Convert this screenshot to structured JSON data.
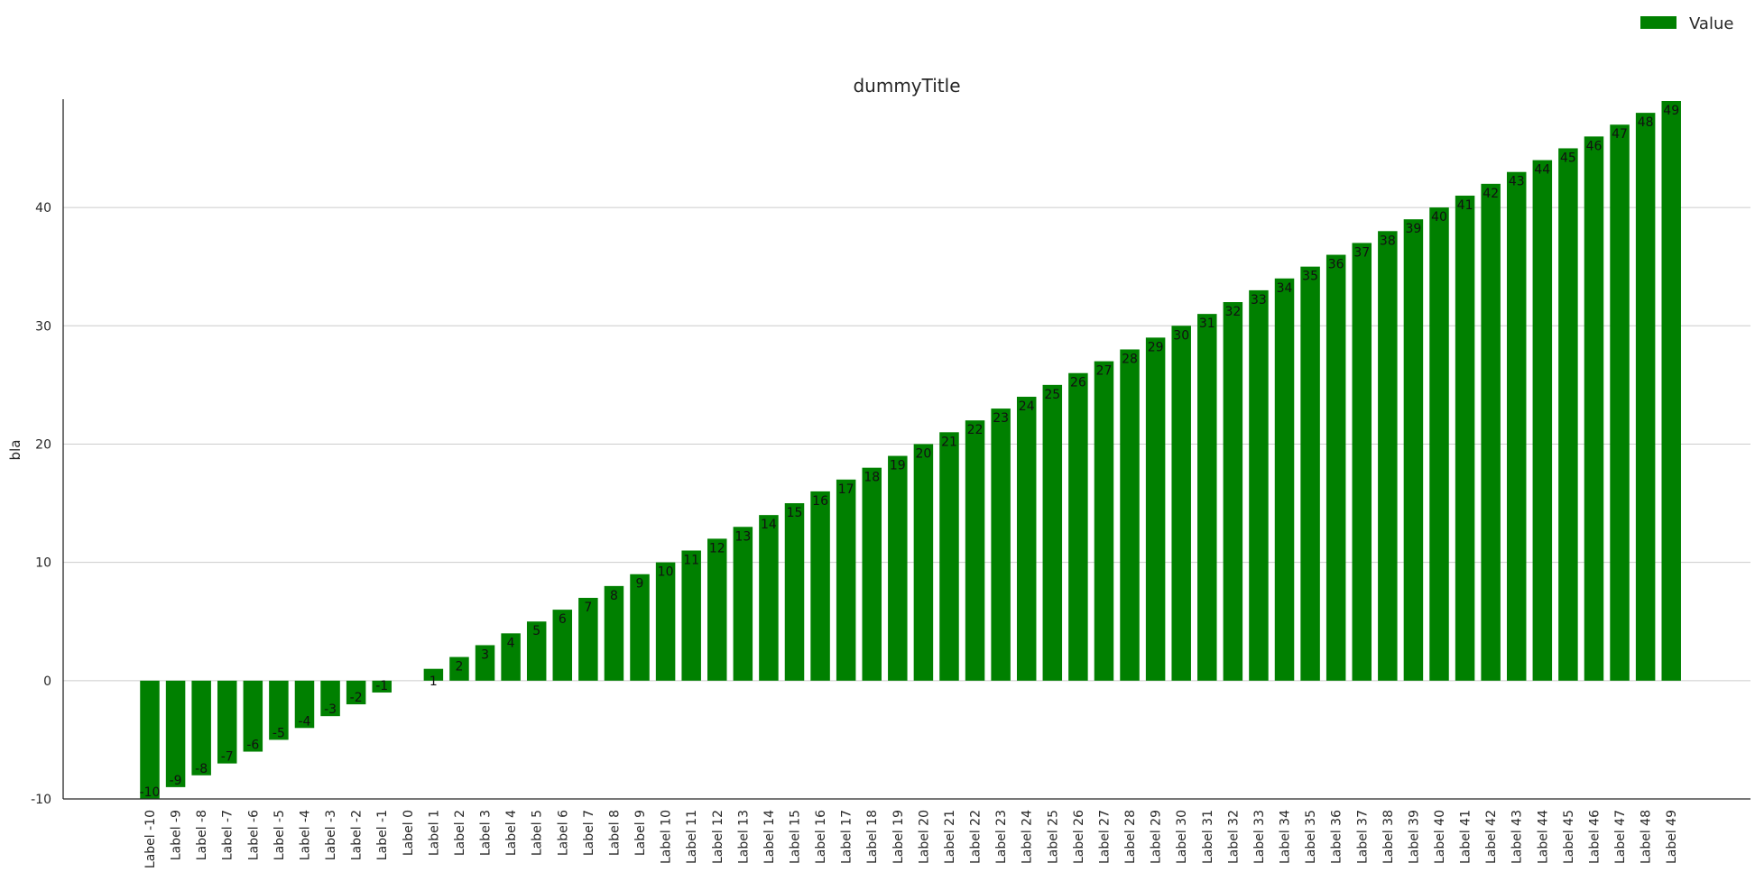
{
  "chart_data": {
    "type": "bar",
    "title": "dummyTitle",
    "xlabel": "",
    "ylabel": "bla",
    "ylim": [
      -10,
      49
    ],
    "yticks": [
      -10,
      0,
      10,
      20,
      30,
      40
    ],
    "grid": true,
    "legend": {
      "position": "top-right",
      "entries": [
        "Value"
      ]
    },
    "categories": [
      "Label -10",
      "Label -9",
      "Label -8",
      "Label -7",
      "Label -6",
      "Label -5",
      "Label -4",
      "Label -3",
      "Label -2",
      "Label -1",
      "Label 0",
      "Label 1",
      "Label 2",
      "Label 3",
      "Label 4",
      "Label 5",
      "Label 6",
      "Label 7",
      "Label 8",
      "Label 9",
      "Label 10",
      "Label 11",
      "Label 12",
      "Label 13",
      "Label 14",
      "Label 15",
      "Label 16",
      "Label 17",
      "Label 18",
      "Label 19",
      "Label 20",
      "Label 21",
      "Label 22",
      "Label 23",
      "Label 24",
      "Label 25",
      "Label 26",
      "Label 27",
      "Label 28",
      "Label 29",
      "Label 30",
      "Label 31",
      "Label 32",
      "Label 33",
      "Label 34",
      "Label 35",
      "Label 36",
      "Label 37",
      "Label 38",
      "Label 39",
      "Label 40",
      "Label 41",
      "Label 42",
      "Label 43",
      "Label 44",
      "Label 45",
      "Label 46",
      "Label 47",
      "Label 48",
      "Label 49"
    ],
    "series": [
      {
        "name": "Value",
        "color": "#008000",
        "values": [
          -10,
          -9,
          -8,
          -7,
          -6,
          -5,
          -4,
          -3,
          -2,
          -1,
          0,
          1,
          2,
          3,
          4,
          5,
          6,
          7,
          8,
          9,
          10,
          11,
          12,
          13,
          14,
          15,
          16,
          17,
          18,
          19,
          20,
          21,
          22,
          23,
          24,
          25,
          26,
          27,
          28,
          29,
          30,
          31,
          32,
          33,
          34,
          35,
          36,
          37,
          38,
          39,
          40,
          41,
          42,
          43,
          44,
          45,
          46,
          47,
          48,
          49
        ],
        "data_labels": [
          "-10",
          "-9",
          "-8",
          "-7",
          "-6",
          "-5",
          "-4",
          "-3",
          "-2",
          "-1",
          "",
          "1",
          "2",
          "3",
          "4",
          "5",
          "6",
          "7",
          "8",
          "9",
          "10",
          "11",
          "12",
          "13",
          "14",
          "15",
          "16",
          "17",
          "18",
          "19",
          "20",
          "21",
          "22",
          "23",
          "24",
          "25",
          "26",
          "27",
          "28",
          "29",
          "30",
          "31",
          "32",
          "33",
          "34",
          "35",
          "36",
          "37",
          "38",
          "39",
          "40",
          "41",
          "42",
          "43",
          "44",
          "45",
          "46",
          "47",
          "48",
          "49"
        ]
      }
    ]
  }
}
